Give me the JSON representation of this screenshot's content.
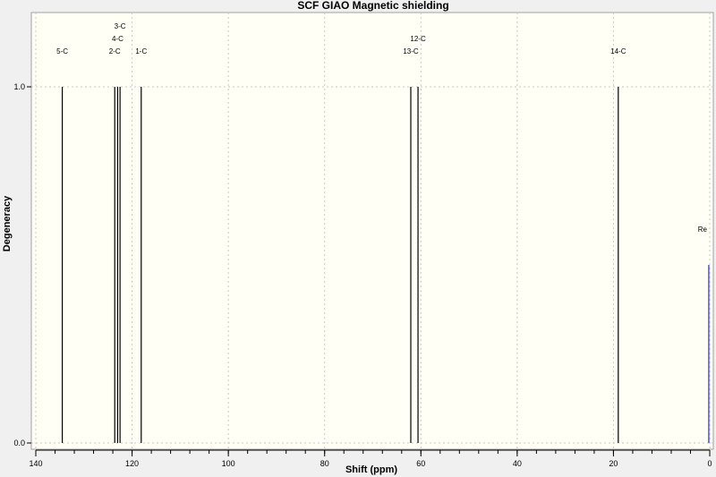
{
  "chart_data": {
    "type": "bar",
    "title": "SCF GIAO Magnetic shielding",
    "xlabel": "Shift (ppm)",
    "ylabel": "Degeneracy",
    "xlim": [
      140,
      0
    ],
    "ylim": [
      0,
      1
    ],
    "x_reversed": true,
    "xticks": [
      "140",
      "120",
      "100",
      "80",
      "60",
      "40",
      "20",
      "0"
    ],
    "yticks": [
      "0.0",
      "1.0"
    ],
    "grid": true,
    "peaks": [
      {
        "label": "5-C",
        "shift": 134.5,
        "degeneracy": 1
      },
      {
        "label": "2-C",
        "shift": 123.6,
        "degeneracy": 1
      },
      {
        "label": "4-C",
        "shift": 123.0,
        "degeneracy": 1
      },
      {
        "label": "3-C",
        "shift": 122.5,
        "degeneracy": 1
      },
      {
        "label": "1-C",
        "shift": 118.1,
        "degeneracy": 1
      },
      {
        "label": "13-C",
        "shift": 62.1,
        "degeneracy": 1
      },
      {
        "label": "12-C",
        "shift": 60.6,
        "degeneracy": 1
      },
      {
        "label": "14-C",
        "shift": 19.0,
        "degeneracy": 1
      }
    ],
    "reference": {
      "label": "Re",
      "shift": 0.2,
      "degeneracy": 0.5
    },
    "colors": {
      "background": "#fffff6",
      "peak": "#000000",
      "reference": "#5050ff",
      "grid": "#c8c8c8"
    }
  }
}
